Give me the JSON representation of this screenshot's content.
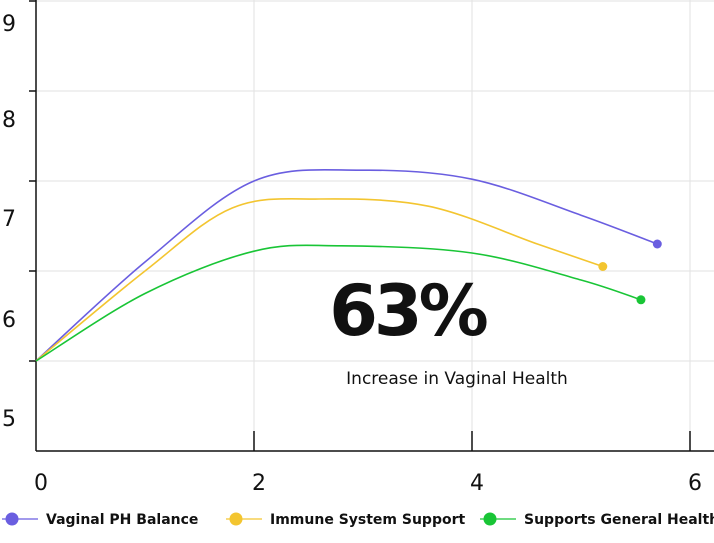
{
  "chart_data": {
    "type": "line",
    "xlim": [
      0,
      6
    ],
    "x_ticks": [
      "0",
      "2",
      "4",
      "6"
    ],
    "y_tick_labels": [
      "9",
      "8",
      "7",
      "6",
      "5"
    ],
    "grid": true,
    "legend_placement": "bottom",
    "series": [
      {
        "name": "Vaginal PH Balance",
        "color": "#6a5ee0",
        "points": [
          [
            0,
            6.0
          ],
          [
            1.0,
            7.1
          ],
          [
            2.0,
            8.0
          ],
          [
            3.0,
            8.12
          ],
          [
            4.0,
            8.02
          ],
          [
            5.0,
            7.62
          ],
          [
            5.7,
            7.3
          ]
        ]
      },
      {
        "name": "Immune System Support",
        "color": "#f3c530",
        "points": [
          [
            0,
            6.0
          ],
          [
            1.0,
            7.0
          ],
          [
            1.8,
            7.7
          ],
          [
            2.6,
            7.8
          ],
          [
            3.6,
            7.72
          ],
          [
            4.6,
            7.3
          ],
          [
            5.2,
            7.05
          ]
        ]
      },
      {
        "name": "Supports General Health",
        "color": "#19c536",
        "points": [
          [
            0,
            6.0
          ],
          [
            1.0,
            6.75
          ],
          [
            2.0,
            7.22
          ],
          [
            2.8,
            7.28
          ],
          [
            4.0,
            7.2
          ],
          [
            5.0,
            6.9
          ],
          [
            5.55,
            6.68
          ]
        ]
      }
    ],
    "annotation": {
      "value": "63%",
      "caption": "Increase in Vaginal Health"
    }
  }
}
